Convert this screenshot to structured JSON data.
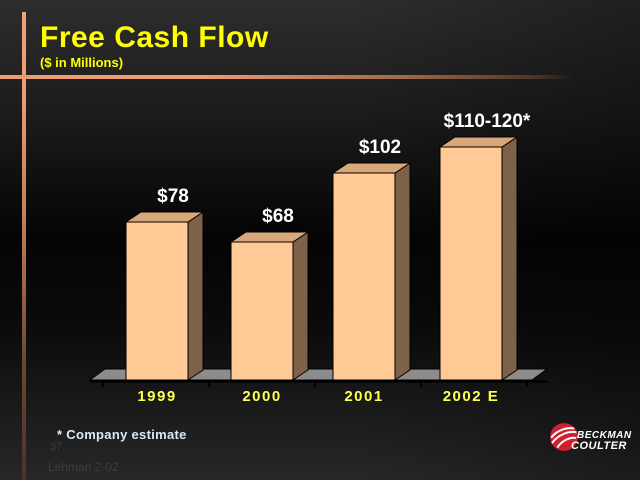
{
  "slide": {
    "title": "Free Cash Flow",
    "subtitle": "($ in Millions)",
    "footnote": "* Company estimate",
    "page_number": "37",
    "source_note": "Lehman 2-02"
  },
  "logo": {
    "line1": "BECKMAN",
    "line2": "COULTER"
  },
  "colors": {
    "background_top": "#2d2d2d",
    "background_middle": "#040404",
    "accent_line": "#ed9b72",
    "title_text": "#ffff00",
    "axis_label": "#ffff4d",
    "value_label": "#ffffff",
    "bar_front": "#ffca96",
    "bar_top": "#d8a87a",
    "bar_side": "#7d6249",
    "floor": "#8c8c8c",
    "outline": "#000000",
    "footnote_text": "#dce9f5",
    "faint_text": "#3d3d3d",
    "logo_red": "#cf2030"
  },
  "chart_data": {
    "type": "bar",
    "projection": "3d",
    "title": "Free Cash Flow",
    "ylabel": "$ in Millions",
    "xlabel": "",
    "grid": false,
    "legend": false,
    "ylim": [
      0,
      130
    ],
    "categories": [
      "1999",
      "2000",
      "2001",
      "2002 E"
    ],
    "values": [
      78,
      68,
      102,
      115
    ],
    "value_labels": [
      "$78",
      "$68",
      "$102",
      "$110-120*"
    ],
    "notes": "2002 E bar shows company estimate range of $110-120 million"
  }
}
